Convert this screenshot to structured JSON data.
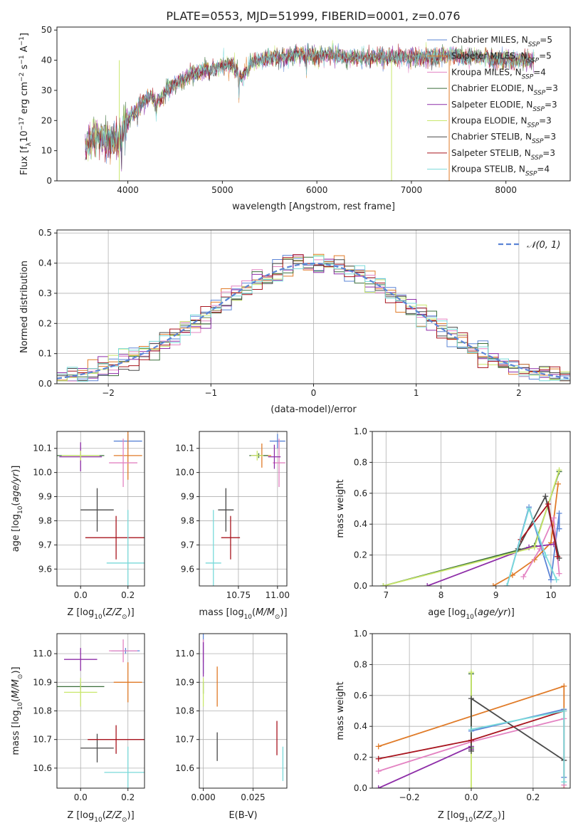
{
  "colors": {
    "chabrier_miles": "#5b84d6",
    "salpeter_miles": "#e07b28",
    "kroupa_miles": "#e383c2",
    "chabrier_elodie": "#3a6e3a",
    "salpeter_elodie": "#8e2ea8",
    "kroupa_elodie": "#c9e76b",
    "chabrier_stelib": "#4a4a4a",
    "salpeter_stelib": "#a8141e",
    "kroupa_stelib": "#79dada",
    "normal_curve": "#5b84d6"
  },
  "chart_data": [
    {
      "id": "spectrum",
      "type": "line",
      "title": "PLATE=0553, MJD=51999, FIBERID=0001, z=0.076",
      "xlabel": "wavelength [Angstrom, rest frame]",
      "ylabel": "Flux [f_λ 10^-17 erg cm^-2 s^-1 A^-1]",
      "xlim": [
        3250,
        8680
      ],
      "ylim": [
        0,
        51
      ],
      "xticks": [
        4000,
        5000,
        6000,
        7000,
        8000
      ],
      "yticks": [
        0,
        10,
        20,
        30,
        40,
        50
      ],
      "legend_position": "top-right",
      "envelope": {
        "x": [
          3550,
          3600,
          3650,
          3700,
          3750,
          3800,
          3850,
          3900,
          3950,
          4000,
          4050,
          4100,
          4150,
          4200,
          4250,
          4300,
          4350,
          4400,
          4500,
          4600,
          4700,
          4800,
          4900,
          5000,
          5100,
          5200,
          5300,
          5400,
          5500,
          5600,
          5700,
          5800,
          5900,
          6000,
          6100,
          6200,
          6300,
          6400,
          6500,
          6600,
          6700,
          6800,
          6900,
          7000,
          7100,
          7200,
          7300,
          7400,
          7500,
          7600,
          7700,
          7800,
          7900,
          8000,
          8100,
          8200,
          8300
        ],
        "y": [
          11,
          13,
          15,
          15,
          14,
          13,
          14,
          13,
          18,
          20,
          22,
          24,
          26,
          27,
          28,
          26,
          27,
          30,
          32,
          34,
          35,
          37,
          37,
          38,
          39,
          34,
          39,
          40,
          41,
          41,
          41,
          42,
          42,
          41,
          42,
          42,
          41,
          41,
          41,
          41,
          41,
          41,
          41,
          41,
          41,
          41,
          41,
          42,
          41,
          41,
          41,
          41,
          40,
          40,
          40,
          40,
          40
        ]
      },
      "series": [
        {
          "name": "Chabrier MILES, N_SSP=5",
          "color_key": "chabrier_miles"
        },
        {
          "name": "Salpeter MILES, N_SSP=5",
          "color_key": "salpeter_miles"
        },
        {
          "name": "Kroupa MILES, N_SSP=4",
          "color_key": "kroupa_miles"
        },
        {
          "name": "Chabrier ELODIE, N_SSP=3",
          "color_key": "chabrier_elodie"
        },
        {
          "name": "Salpeter ELODIE, N_SSP=3",
          "color_key": "salpeter_elodie"
        },
        {
          "name": "Kroupa ELODIE, N_SSP=3",
          "color_key": "kroupa_elodie"
        },
        {
          "name": "Chabrier STELIB, N_SSP=3",
          "color_key": "chabrier_stelib"
        },
        {
          "name": "Salpeter STELIB, N_SSP=3",
          "color_key": "salpeter_stelib"
        },
        {
          "name": "Kroupa STELIB, N_SSP=4",
          "color_key": "kroupa_stelib"
        }
      ]
    },
    {
      "id": "residuals",
      "type": "histogram",
      "xlabel": "(data-model)/error",
      "ylabel": "Normed distribution",
      "xlim": [
        -2.5,
        2.5
      ],
      "ylim": [
        0,
        0.51
      ],
      "xticks": [
        -2,
        -1,
        0,
        1,
        2
      ],
      "yticks": [
        0.0,
        0.1,
        0.2,
        0.3,
        0.4,
        0.5
      ],
      "grid": true,
      "bin_edges_range": [
        -2.5,
        2.5
      ],
      "bin_count": 50,
      "reference_curve": {
        "name": "𝒩(0, 1)",
        "mean": 0,
        "sigma": 1,
        "color_key": "normal_curve"
      },
      "legend_position": "top-right"
    },
    {
      "id": "age_vs_z",
      "type": "errorbar",
      "xlabel": "Z [log10(Z/Z⊙)]",
      "ylabel": "age [log10(age/yr)]",
      "xlim": [
        -0.1,
        0.27
      ],
      "ylim": [
        9.53,
        10.17
      ],
      "xticks": [
        0.0,
        0.2
      ],
      "yticks": [
        9.6,
        9.7,
        9.8,
        9.9,
        10.0,
        10.1
      ],
      "grid": true,
      "points": [
        {
          "color_key": "chabrier_miles",
          "x": 0.2,
          "y": 10.13,
          "xerr": 0.06,
          "yerr": 0.03
        },
        {
          "color_key": "salpeter_miles",
          "x": 0.2,
          "y": 10.07,
          "xerr": 0.06,
          "yerr": 0.1
        },
        {
          "color_key": "kroupa_miles",
          "x": 0.18,
          "y": 10.04,
          "xerr": 0.06,
          "yerr": 0.1
        },
        {
          "color_key": "chabrier_elodie",
          "x": 0.0,
          "y": 10.07,
          "xerr": 0.1,
          "yerr": 0.01
        },
        {
          "color_key": "salpeter_elodie",
          "x": 0.0,
          "y": 10.065,
          "xerr": 0.09,
          "yerr": 0.06
        },
        {
          "color_key": "kroupa_elodie",
          "x": 0.0,
          "y": 10.07,
          "xerr": 0.08,
          "yerr": 0.02
        },
        {
          "color_key": "chabrier_stelib",
          "x": 0.07,
          "y": 9.845,
          "xerr": 0.07,
          "yerr": 0.09
        },
        {
          "color_key": "salpeter_stelib",
          "x": 0.15,
          "y": 9.73,
          "xerr": 0.13,
          "yerr": 0.09
        },
        {
          "color_key": "kroupa_stelib",
          "x": 0.2,
          "y": 9.625,
          "xerr": 0.09,
          "yerr": 0.22
        }
      ]
    },
    {
      "id": "age_vs_mass",
      "type": "errorbar",
      "xlabel": "mass [log10(M/M⊙)]",
      "ylabel": "",
      "xlim": [
        10.5,
        11.06
      ],
      "ylim": [
        9.53,
        10.17
      ],
      "xticks": [
        10.75,
        11.0
      ],
      "yticks": [
        9.6,
        9.7,
        9.8,
        9.9,
        10.0,
        10.1
      ],
      "grid": true,
      "points": [
        {
          "color_key": "chabrier_miles",
          "x": 11.0,
          "y": 10.13,
          "xerr": 0.05,
          "yerr": 0.03
        },
        {
          "color_key": "salpeter_miles",
          "x": 10.9,
          "y": 10.07,
          "xerr": 0.06,
          "yerr": 0.05
        },
        {
          "color_key": "kroupa_miles",
          "x": 11.01,
          "y": 10.04,
          "xerr": 0.04,
          "yerr": 0.1
        },
        {
          "color_key": "chabrier_elodie",
          "x": 10.88,
          "y": 10.07,
          "xerr": 0.06,
          "yerr": 0.01
        },
        {
          "color_key": "salpeter_elodie",
          "x": 10.98,
          "y": 10.065,
          "xerr": 0.04,
          "yerr": 0.05
        },
        {
          "color_key": "kroupa_elodie",
          "x": 10.87,
          "y": 10.07,
          "xerr": 0.04,
          "yerr": 0.02
        },
        {
          "color_key": "chabrier_stelib",
          "x": 10.67,
          "y": 9.845,
          "xerr": 0.05,
          "yerr": 0.09
        },
        {
          "color_key": "salpeter_stelib",
          "x": 10.7,
          "y": 9.73,
          "xerr": 0.06,
          "yerr": 0.09
        },
        {
          "color_key": "kroupa_stelib",
          "x": 10.59,
          "y": 9.625,
          "xerr": 0.05,
          "yerr": 0.22
        }
      ]
    },
    {
      "id": "weight_vs_age",
      "type": "line",
      "xlabel": "age [log10(age/yr)]",
      "ylabel": "mass weight",
      "xlim": [
        6.75,
        10.35
      ],
      "ylim": [
        0,
        1.0
      ],
      "xticks": [
        7,
        8,
        9,
        10
      ],
      "yticks": [
        0.0,
        0.2,
        0.4,
        0.6,
        0.8,
        1.0
      ],
      "grid": true,
      "series": [
        {
          "color_key": "chabrier_miles",
          "x": [
            9.2,
            9.6,
            10.0,
            10.15,
            10.15
          ],
          "y": [
            0.0,
            0.51,
            0.04,
            0.47,
            0.37
          ]
        },
        {
          "color_key": "salpeter_miles",
          "x": [
            8.95,
            9.3,
            9.7,
            10.0,
            10.13
          ],
          "y": [
            0.0,
            0.07,
            0.17,
            0.28,
            0.66
          ]
        },
        {
          "color_key": "kroupa_miles",
          "x": [
            9.5,
            9.8,
            10.05,
            10.15
          ],
          "y": [
            0.06,
            0.24,
            0.44,
            0.08
          ]
        },
        {
          "color_key": "chabrier_elodie",
          "x": [
            6.95,
            9.7,
            10.15
          ],
          "y": [
            0.0,
            0.26,
            0.74
          ]
        },
        {
          "color_key": "salpeter_elodie",
          "x": [
            7.75,
            9.6,
            10.05
          ],
          "y": [
            0.0,
            0.25,
            0.27
          ]
        },
        {
          "color_key": "kroupa_elodie",
          "x": [
            6.95,
            9.7,
            10.15
          ],
          "y": [
            0.0,
            0.25,
            0.75
          ]
        },
        {
          "color_key": "chabrier_stelib",
          "x": [
            9.4,
            9.9,
            10.15
          ],
          "y": [
            0.24,
            0.58,
            0.18
          ]
        },
        {
          "color_key": "salpeter_stelib",
          "x": [
            9.45,
            9.95,
            10.12
          ],
          "y": [
            0.3,
            0.53,
            0.19
          ]
        },
        {
          "color_key": "kroupa_stelib",
          "x": [
            9.2,
            9.6,
            9.9,
            10.1
          ],
          "y": [
            0.0,
            0.5,
            0.2,
            0.04
          ]
        }
      ]
    },
    {
      "id": "mass_vs_z",
      "type": "errorbar",
      "xlabel": "Z [log10(Z/Z⊙)]",
      "ylabel": "mass [log10(M/M⊙)]",
      "xlim": [
        -0.1,
        0.27
      ],
      "ylim": [
        10.53,
        11.07
      ],
      "xticks": [
        0.0,
        0.2
      ],
      "yticks": [
        10.6,
        10.7,
        10.8,
        10.9,
        11.0
      ],
      "grid": true,
      "points": [
        {
          "color_key": "chabrier_miles",
          "x": 0.19,
          "y": 11.01,
          "xerr": 0.06,
          "yerr": 0.01
        },
        {
          "color_key": "salpeter_miles",
          "x": 0.2,
          "y": 10.9,
          "xerr": 0.06,
          "yerr": 0.07
        },
        {
          "color_key": "kroupa_miles",
          "x": 0.18,
          "y": 11.01,
          "xerr": 0.06,
          "yerr": 0.04
        },
        {
          "color_key": "chabrier_elodie",
          "x": 0.0,
          "y": 10.885,
          "xerr": 0.1,
          "yerr": 0.01
        },
        {
          "color_key": "salpeter_elodie",
          "x": 0.0,
          "y": 10.98,
          "xerr": 0.07,
          "yerr": 0.04
        },
        {
          "color_key": "kroupa_elodie",
          "x": 0.0,
          "y": 10.865,
          "xerr": 0.07,
          "yerr": 0.05
        },
        {
          "color_key": "chabrier_stelib",
          "x": 0.07,
          "y": 10.67,
          "xerr": 0.07,
          "yerr": 0.05
        },
        {
          "color_key": "salpeter_stelib",
          "x": 0.15,
          "y": 10.7,
          "xerr": 0.12,
          "yerr": 0.05
        },
        {
          "color_key": "kroupa_stelib",
          "x": 0.2,
          "y": 10.585,
          "xerr": 0.1,
          "yerr": 0.09
        }
      ]
    },
    {
      "id": "mass_vs_ebv",
      "type": "errorbar",
      "xlabel": "E(B-V)",
      "ylabel": "",
      "xlim": [
        -0.002,
        0.042
      ],
      "ylim": [
        10.53,
        11.07
      ],
      "xticks": [
        0.0,
        0.025
      ],
      "yticks": [
        10.6,
        10.7,
        10.8,
        10.9,
        11.0
      ],
      "grid": true,
      "points": [
        {
          "color_key": "chabrier_miles",
          "x": 0.0,
          "y": 11.0,
          "xerr": 0,
          "yerr": 0.07
        },
        {
          "color_key": "salpeter_miles",
          "x": 0.007,
          "y": 10.885,
          "xerr": 0,
          "yerr": 0.07
        },
        {
          "color_key": "kroupa_miles",
          "x": 0.0,
          "y": 11.01,
          "xerr": 0,
          "yerr": 0.04
        },
        {
          "color_key": "chabrier_elodie",
          "x": 0.0,
          "y": 10.88,
          "xerr": 0,
          "yerr": 0.02
        },
        {
          "color_key": "salpeter_elodie",
          "x": 0.0,
          "y": 10.98,
          "xerr": 0,
          "yerr": 0.06
        },
        {
          "color_key": "kroupa_elodie",
          "x": 0.0,
          "y": 10.865,
          "xerr": 0,
          "yerr": 0.05
        },
        {
          "color_key": "chabrier_stelib",
          "x": 0.007,
          "y": 10.675,
          "xerr": 0,
          "yerr": 0.05
        },
        {
          "color_key": "salpeter_stelib",
          "x": 0.037,
          "y": 10.705,
          "xerr": 0,
          "yerr": 0.06
        },
        {
          "color_key": "kroupa_stelib",
          "x": 0.04,
          "y": 10.615,
          "xerr": 0,
          "yerr": 0.06
        }
      ]
    },
    {
      "id": "weight_vs_z",
      "type": "line",
      "xlabel": "Z [log10(Z/Z⊙)]",
      "ylabel": "mass weight",
      "xlim": [
        -0.32,
        0.32
      ],
      "ylim": [
        0,
        1.0
      ],
      "xticks": [
        -0.2,
        0.0,
        0.2
      ],
      "yticks": [
        0.0,
        0.2,
        0.4,
        0.6,
        0.8,
        1.0
      ],
      "grid": true,
      "series": [
        {
          "color_key": "chabrier_miles",
          "x": [
            0.0,
            0.3,
            0.3
          ],
          "y": [
            0.37,
            0.51,
            0.07
          ]
        },
        {
          "color_key": "salpeter_miles",
          "x": [
            -0.3,
            0.3,
            0.3
          ],
          "y": [
            0.27,
            0.66,
            0.0
          ]
        },
        {
          "color_key": "kroupa_miles",
          "x": [
            -0.3,
            0.0,
            0.3,
            0.3
          ],
          "y": [
            0.11,
            0.3,
            0.45,
            0.02
          ]
        },
        {
          "color_key": "chabrier_elodie",
          "x": [
            0.0,
            0.0
          ],
          "y": [
            0.26,
            0.74
          ]
        },
        {
          "color_key": "salpeter_elodie",
          "x": [
            -0.3,
            0.0,
            0.0
          ],
          "y": [
            0.0,
            0.27,
            0.25
          ]
        },
        {
          "color_key": "kroupa_elodie",
          "x": [
            0.0,
            0.0
          ],
          "y": [
            0.0,
            0.75
          ]
        },
        {
          "color_key": "chabrier_stelib",
          "x": [
            0.0,
            0.0,
            0.3
          ],
          "y": [
            0.24,
            0.58,
            0.18
          ]
        },
        {
          "color_key": "salpeter_stelib",
          "x": [
            -0.3,
            0.0,
            0.3
          ],
          "y": [
            0.19,
            0.31,
            0.5
          ]
        },
        {
          "color_key": "kroupa_stelib",
          "x": [
            0.0,
            0.3,
            0.3
          ],
          "y": [
            0.38,
            0.5,
            0.04
          ]
        }
      ]
    }
  ]
}
